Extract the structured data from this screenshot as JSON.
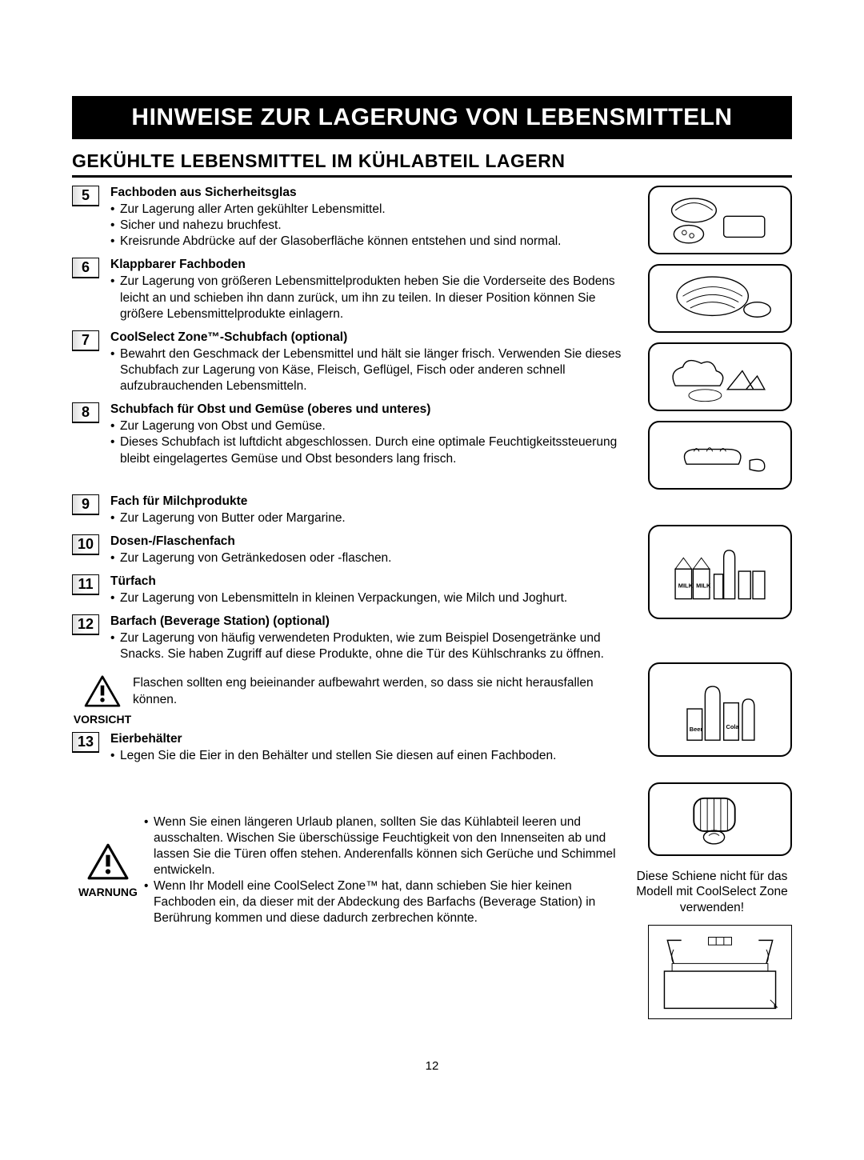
{
  "page": {
    "title": "HINWEISE ZUR LAGERUNG VON LEBENSMITTELN",
    "subtitle": "GEKÜHLTE LEBENSMITTEL IM KÜHLABTEIL LAGERN",
    "page_number": "12"
  },
  "items": [
    {
      "num": "5",
      "title": "Fachboden aus Sicherheitsglas",
      "bullets": [
        "Zur Lagerung aller Arten gekühlter Lebensmittel.",
        "Sicher und nahezu bruchfest.",
        "Kreisrunde Abdrücke auf der Glasoberfläche können entstehen und sind normal."
      ]
    },
    {
      "num": "6",
      "title": "Klappbarer Fachboden",
      "bullets": [
        "Zur Lagerung von größeren Lebensmittelprodukten heben Sie die Vorderseite des Bodens leicht an und schieben ihn dann zurück, um ihn zu teilen. In dieser Position können Sie größere Lebensmittelprodukte einlagern."
      ]
    },
    {
      "num": "7",
      "title": "CoolSelect Zone™-Schubfach (optional)",
      "bullets": [
        "Bewahrt den Geschmack der Lebensmittel und hält sie länger frisch. Verwenden Sie dieses Schubfach zur Lagerung von Käse, Fleisch, Geflügel, Fisch oder anderen schnell aufzubrauchenden Lebensmitteln."
      ]
    },
    {
      "num": "8",
      "title": "Schubfach für Obst und Gemüse (oberes und unteres)",
      "bullets": [
        "Zur Lagerung von Obst und Gemüse.",
        "Dieses Schubfach ist luftdicht abgeschlossen. Durch eine optimale Feuchtigkeitssteuerung bleibt eingelagertes Gemüse und Obst besonders lang frisch."
      ]
    },
    {
      "num": "9",
      "title": "Fach für Milchprodukte",
      "bullets": [
        "Zur Lagerung von Butter oder Margarine."
      ]
    },
    {
      "num": "10",
      "title": "Dosen-/Flaschenfach",
      "bullets": [
        "Zur Lagerung von Getränkedosen oder -flaschen."
      ]
    },
    {
      "num": "11",
      "title": "Türfach",
      "bullets": [
        "Zur Lagerung von Lebensmitteln in kleinen Verpackungen, wie Milch und Joghurt."
      ]
    },
    {
      "num": "12",
      "title": "Barfach (Beverage Station) (optional)",
      "bullets": [
        "Zur Lagerung von häufig verwendeten Produkten, wie zum Beispiel Dosengetränke und Snacks. Sie haben Zugriff auf diese Produkte, ohne die Tür des Kühlschranks zu öffnen."
      ]
    }
  ],
  "caution": {
    "label": "VORSICHT",
    "text": "Flaschen sollten eng beieinander aufbewahrt werden, so dass sie nicht herausfallen können."
  },
  "item13": {
    "num": "13",
    "title": "Eierbehälter",
    "bullets": [
      "Legen Sie die Eier in den Behälter und stellen Sie diesen auf einen Fachboden."
    ]
  },
  "side_note": "Diese Schiene nicht für das Modell mit CoolSelect Zone verwenden!",
  "warning": {
    "label": "WARNUNG",
    "bullets": [
      "Wenn Sie einen längeren Urlaub planen, sollten Sie das Kühlabteil leeren und ausschalten. Wischen Sie überschüssige Feuchtigkeit von den Innenseiten ab und lassen Sie die Türen offen stehen. Anderenfalls können sich Gerüche und Schimmel entwickeln.",
      "Wenn Ihr Modell eine CoolSelect Zone™ hat, dann schieben Sie hier keinen Fachboden ein, da dieser mit der Abdeckung des Barfachs (Beverage Station) in Berührung kommen und diese dadurch zerbrechen könnte."
    ]
  },
  "style": {
    "title_bg": "#000000",
    "title_color": "#ffffff",
    "text_color": "#000000",
    "page_bg": "#ffffff",
    "border_radius": 14
  }
}
